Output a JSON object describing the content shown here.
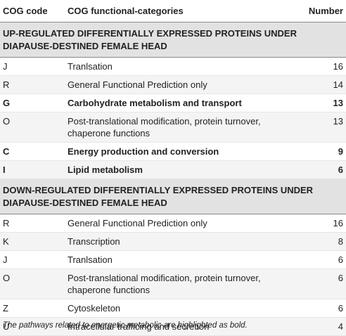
{
  "header": {
    "code": "COG code",
    "category": "COG functional-categories",
    "number": "Number"
  },
  "sections": [
    {
      "title": "UP-REGULATED DIFFERENTIALLY EXPRESSED PROTEINS UNDER DIAPAUSE-DESTINED FEMALE HEAD",
      "rows": [
        {
          "code": "J",
          "category": "Tranlsation",
          "number": "16",
          "bold": false
        },
        {
          "code": "R",
          "category": "General Functional Prediction only",
          "number": "14",
          "bold": false
        },
        {
          "code": "G",
          "category": "Carbohydrate metabolism and transport",
          "number": "13",
          "bold": true
        },
        {
          "code": "O",
          "category": "Post-translational modification, protein turnover, chaperone functions",
          "number": "13",
          "bold": false
        },
        {
          "code": "C",
          "category": "Energy production and conversion",
          "number": "9",
          "bold": true
        },
        {
          "code": "I",
          "category": "Lipid metabolism",
          "number": "6",
          "bold": true
        }
      ]
    },
    {
      "title": "DOWN-REGULATED DIFFERENTIALLY EXPRESSED PROTEINS UNDER DIAPAUSE-DESTINED FEMALE HEAD",
      "rows": [
        {
          "code": "R",
          "category": "General Functional Prediction only",
          "number": "16",
          "bold": false
        },
        {
          "code": "K",
          "category": "Transcription",
          "number": "8",
          "bold": false
        },
        {
          "code": "J",
          "category": "Tranlsation",
          "number": "6",
          "bold": false
        },
        {
          "code": "O",
          "category": "Post-translational modification, protein turnover, chaperone functions",
          "number": "6",
          "bold": false
        },
        {
          "code": "Z",
          "category": "Cytoskeleton",
          "number": "6",
          "bold": false
        },
        {
          "code": "U",
          "category": "Intracellular trafficing and secretion",
          "number": "4",
          "bold": false
        }
      ]
    }
  ],
  "footnote": "The pathways related to energetic metabolic are highlighted as bold."
}
